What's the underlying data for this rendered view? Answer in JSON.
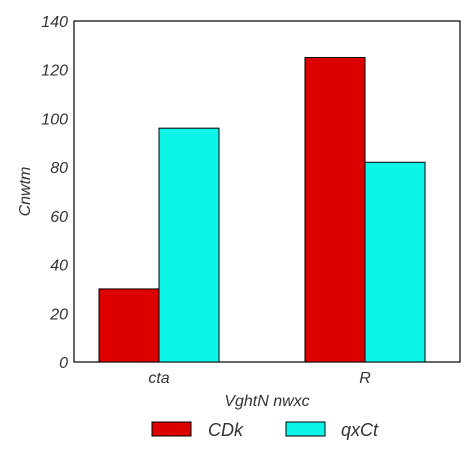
{
  "chart_data": {
    "type": "bar",
    "title": "",
    "xlabel": "VghtN  nwxc",
    "ylabel": "Cnwtm",
    "categories": [
      "cta",
      "R"
    ],
    "series": [
      {
        "name": "CDk",
        "values": [
          30,
          125
        ],
        "color": "#dd0000"
      },
      {
        "name": "qxCt",
        "values": [
          96,
          82
        ],
        "color": "#0cf5e8"
      }
    ],
    "ylim": [
      0,
      140
    ],
    "yticks": [
      0,
      20,
      40,
      60,
      80,
      100,
      120,
      140
    ],
    "grid": false,
    "legend_position": "bottom-center"
  }
}
